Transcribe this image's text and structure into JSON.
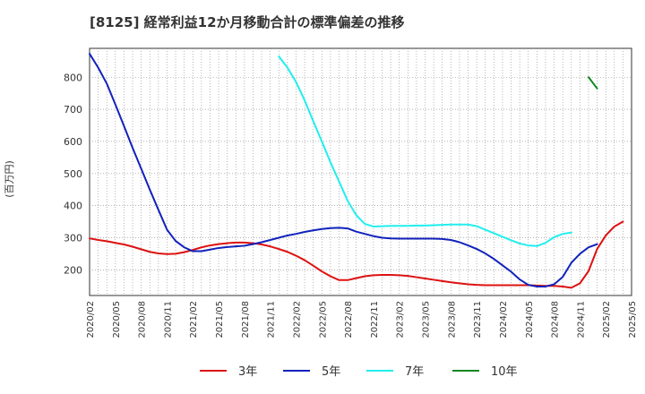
{
  "chart_data": {
    "type": "line",
    "title": "[8125]  経常利益12か月移動合計の標準偏差の推移",
    "ylabel": "(百万円)",
    "xlabel": "",
    "ylim": [
      120,
      890
    ],
    "yticks": [
      200,
      300,
      400,
      500,
      600,
      700,
      800
    ],
    "ytick_labels": [
      "200",
      "300",
      "400",
      "500",
      "600",
      "700",
      "800"
    ],
    "x_start": "2020-02",
    "x_end": "2025-05",
    "x_tick_labels": [
      "2020/02",
      "2020/05",
      "2020/08",
      "2020/11",
      "2021/02",
      "2021/05",
      "2021/08",
      "2021/11",
      "2022/02",
      "2022/05",
      "2022/08",
      "2022/11",
      "2023/02",
      "2023/05",
      "2023/08",
      "2023/11",
      "2024/02",
      "2024/05",
      "2024/08",
      "2024/11",
      "2025/02",
      "2025/05"
    ],
    "grid": true,
    "legend_position": "bottom",
    "series": [
      {
        "name": "3年",
        "color": "#dd1111",
        "start": "2020-02",
        "values": [
          298,
          293,
          289,
          284,
          279,
          272,
          264,
          256,
          251,
          249,
          250,
          255,
          262,
          270,
          276,
          280,
          283,
          285,
          285,
          283,
          279,
          273,
          265,
          256,
          244,
          230,
          213,
          195,
          180,
          168,
          168,
          174,
          180,
          183,
          184,
          184,
          183,
          181,
          177,
          173,
          169,
          165,
          161,
          158,
          155,
          153,
          152,
          152,
          152,
          152,
          152,
          152,
          151,
          150,
          150,
          148,
          144,
          158,
          196,
          265,
          307,
          335,
          350
        ]
      },
      {
        "name": "5年",
        "color": "#1122bb",
        "start": "2020-02",
        "values": [
          873,
          830,
          780,
          715,
          648,
          580,
          515,
          450,
          387,
          325,
          290,
          270,
          258,
          258,
          263,
          268,
          271,
          273,
          275,
          280,
          286,
          293,
          300,
          307,
          312,
          318,
          323,
          327,
          330,
          331,
          329,
          319,
          312,
          305,
          300,
          298,
          297,
          297,
          297,
          297,
          297,
          296,
          293,
          286,
          276,
          265,
          251,
          234,
          214,
          194,
          170,
          153,
          148,
          148,
          155,
          178,
          222,
          250,
          270,
          280
        ]
      },
      {
        "name": "7年",
        "color": "#22eeee",
        "start": "2021-12",
        "values": [
          865,
          830,
          785,
          728,
          663,
          600,
          535,
          475,
          415,
          370,
          343,
          335,
          336,
          337,
          337,
          337,
          338,
          338,
          339,
          340,
          341,
          341,
          341,
          336,
          325,
          314,
          303,
          292,
          282,
          276,
          274,
          284,
          302,
          312,
          316
        ]
      },
      {
        "name": "10年",
        "color": "#118822",
        "start": "2024-12",
        "values": [
          800,
          765
        ]
      }
    ]
  }
}
